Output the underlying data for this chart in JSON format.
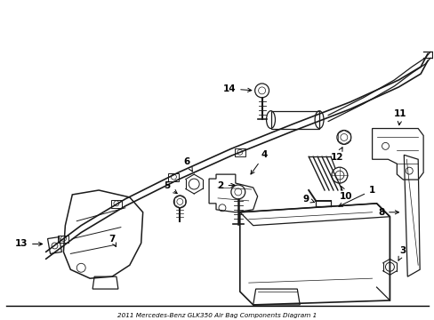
{
  "title": "2011 Mercedes-Benz GLK350 Air Bag Components Diagram 1",
  "background_color": "#ffffff",
  "line_color": "#1a1a1a",
  "figsize": [
    4.89,
    3.6
  ],
  "dpi": 100
}
